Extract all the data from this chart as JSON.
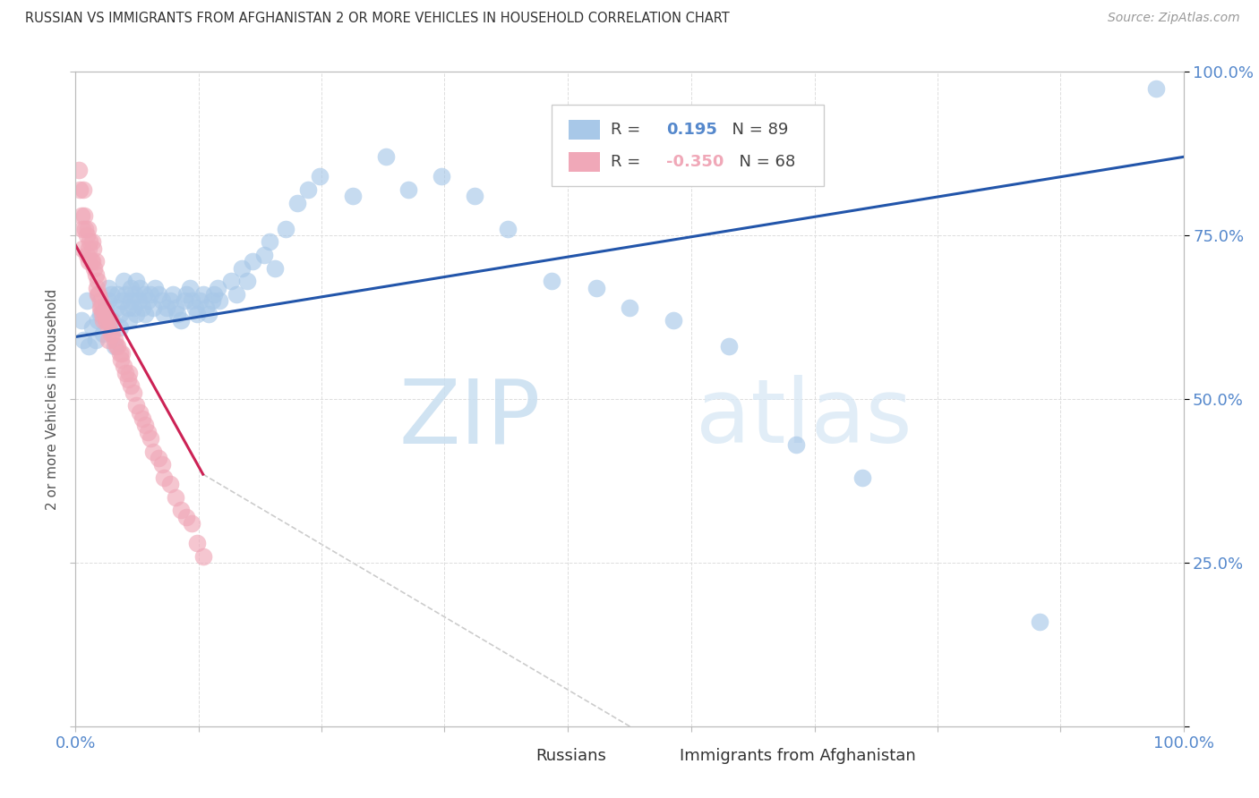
{
  "title": "RUSSIAN VS IMMIGRANTS FROM AFGHANISTAN 2 OR MORE VEHICLES IN HOUSEHOLD CORRELATION CHART",
  "source": "Source: ZipAtlas.com",
  "ylabel": "2 or more Vehicles in Household",
  "watermark_zip": "ZIP",
  "watermark_atlas": "atlas",
  "xlim": [
    0.0,
    1.0
  ],
  "ylim": [
    0.0,
    1.0
  ],
  "xtick_labels": [
    "0.0%",
    "",
    "",
    "",
    "",
    "",
    "",
    "",
    "",
    "100.0%"
  ],
  "xtick_vals": [
    0.0,
    0.111,
    0.222,
    0.333,
    0.444,
    0.556,
    0.667,
    0.778,
    0.889,
    1.0
  ],
  "ytick_labels_right": [
    "",
    "25.0%",
    "50.0%",
    "75.0%",
    "100.0%"
  ],
  "ytick_vals": [
    0.0,
    0.25,
    0.5,
    0.75,
    1.0
  ],
  "blue_color": "#A8C8E8",
  "pink_color": "#F0A8B8",
  "line_blue": "#2255AA",
  "line_pink": "#CC2255",
  "line_gray": "#CCCCCC",
  "title_color": "#333333",
  "axis_color": "#5588CC",
  "legend_R_blue": "0.195",
  "legend_N_blue": "89",
  "legend_R_pink": "-0.350",
  "legend_N_pink": "68",
  "blue_dots_x": [
    0.005,
    0.007,
    0.01,
    0.012,
    0.015,
    0.018,
    0.02,
    0.022,
    0.025,
    0.027,
    0.03,
    0.03,
    0.032,
    0.033,
    0.035,
    0.037,
    0.038,
    0.04,
    0.04,
    0.042,
    0.043,
    0.045,
    0.047,
    0.048,
    0.05,
    0.05,
    0.052,
    0.053,
    0.055,
    0.055,
    0.057,
    0.058,
    0.06,
    0.062,
    0.063,
    0.065,
    0.068,
    0.07,
    0.072,
    0.075,
    0.078,
    0.08,
    0.082,
    0.085,
    0.088,
    0.09,
    0.092,
    0.095,
    0.098,
    0.1,
    0.103,
    0.105,
    0.108,
    0.11,
    0.112,
    0.115,
    0.118,
    0.12,
    0.123,
    0.125,
    0.128,
    0.13,
    0.14,
    0.145,
    0.15,
    0.155,
    0.16,
    0.17,
    0.175,
    0.18,
    0.19,
    0.2,
    0.21,
    0.22,
    0.25,
    0.28,
    0.3,
    0.33,
    0.36,
    0.39,
    0.43,
    0.47,
    0.5,
    0.54,
    0.59,
    0.65,
    0.71,
    0.87,
    0.975
  ],
  "blue_dots_y": [
    0.62,
    0.59,
    0.65,
    0.58,
    0.61,
    0.59,
    0.62,
    0.63,
    0.6,
    0.64,
    0.67,
    0.65,
    0.66,
    0.62,
    0.58,
    0.64,
    0.66,
    0.63,
    0.61,
    0.65,
    0.68,
    0.66,
    0.64,
    0.62,
    0.67,
    0.65,
    0.64,
    0.66,
    0.63,
    0.68,
    0.65,
    0.67,
    0.64,
    0.66,
    0.63,
    0.65,
    0.66,
    0.64,
    0.67,
    0.66,
    0.65,
    0.63,
    0.64,
    0.65,
    0.66,
    0.64,
    0.63,
    0.62,
    0.65,
    0.66,
    0.67,
    0.65,
    0.64,
    0.63,
    0.65,
    0.66,
    0.64,
    0.63,
    0.65,
    0.66,
    0.67,
    0.65,
    0.68,
    0.66,
    0.7,
    0.68,
    0.71,
    0.72,
    0.74,
    0.7,
    0.76,
    0.8,
    0.82,
    0.84,
    0.81,
    0.87,
    0.82,
    0.84,
    0.81,
    0.76,
    0.68,
    0.67,
    0.64,
    0.62,
    0.58,
    0.43,
    0.38,
    0.16,
    0.975
  ],
  "pink_dots_x": [
    0.003,
    0.004,
    0.005,
    0.006,
    0.006,
    0.007,
    0.008,
    0.009,
    0.01,
    0.01,
    0.011,
    0.012,
    0.012,
    0.013,
    0.014,
    0.015,
    0.015,
    0.016,
    0.017,
    0.018,
    0.018,
    0.019,
    0.02,
    0.021,
    0.022,
    0.023,
    0.024,
    0.025,
    0.026,
    0.027,
    0.028,
    0.03,
    0.031,
    0.032,
    0.033,
    0.035,
    0.037,
    0.038,
    0.04,
    0.041,
    0.042,
    0.043,
    0.045,
    0.047,
    0.048,
    0.05,
    0.052,
    0.055,
    0.058,
    0.06,
    0.063,
    0.065,
    0.068,
    0.07,
    0.075,
    0.078,
    0.08,
    0.085,
    0.09,
    0.095,
    0.1,
    0.105,
    0.11,
    0.115,
    0.02,
    0.022,
    0.025,
    0.03
  ],
  "pink_dots_y": [
    0.85,
    0.82,
    0.78,
    0.76,
    0.73,
    0.82,
    0.78,
    0.76,
    0.75,
    0.72,
    0.76,
    0.73,
    0.71,
    0.74,
    0.71,
    0.74,
    0.71,
    0.73,
    0.7,
    0.71,
    0.69,
    0.67,
    0.68,
    0.66,
    0.65,
    0.64,
    0.63,
    0.64,
    0.63,
    0.62,
    0.62,
    0.61,
    0.62,
    0.6,
    0.6,
    0.59,
    0.58,
    0.58,
    0.57,
    0.56,
    0.57,
    0.55,
    0.54,
    0.53,
    0.54,
    0.52,
    0.51,
    0.49,
    0.48,
    0.47,
    0.46,
    0.45,
    0.44,
    0.42,
    0.41,
    0.4,
    0.38,
    0.37,
    0.35,
    0.33,
    0.32,
    0.31,
    0.28,
    0.26,
    0.66,
    0.64,
    0.62,
    0.59
  ],
  "blue_line_x": [
    0.0,
    1.0
  ],
  "blue_line_y": [
    0.595,
    0.87
  ],
  "pink_line_x": [
    0.0,
    0.115
  ],
  "pink_line_y": [
    0.735,
    0.385
  ],
  "gray_line_x": [
    0.115,
    0.55
  ],
  "gray_line_y": [
    0.385,
    -0.05
  ],
  "bg_color": "#FFFFFF",
  "grid_color": "#DDDDDD"
}
